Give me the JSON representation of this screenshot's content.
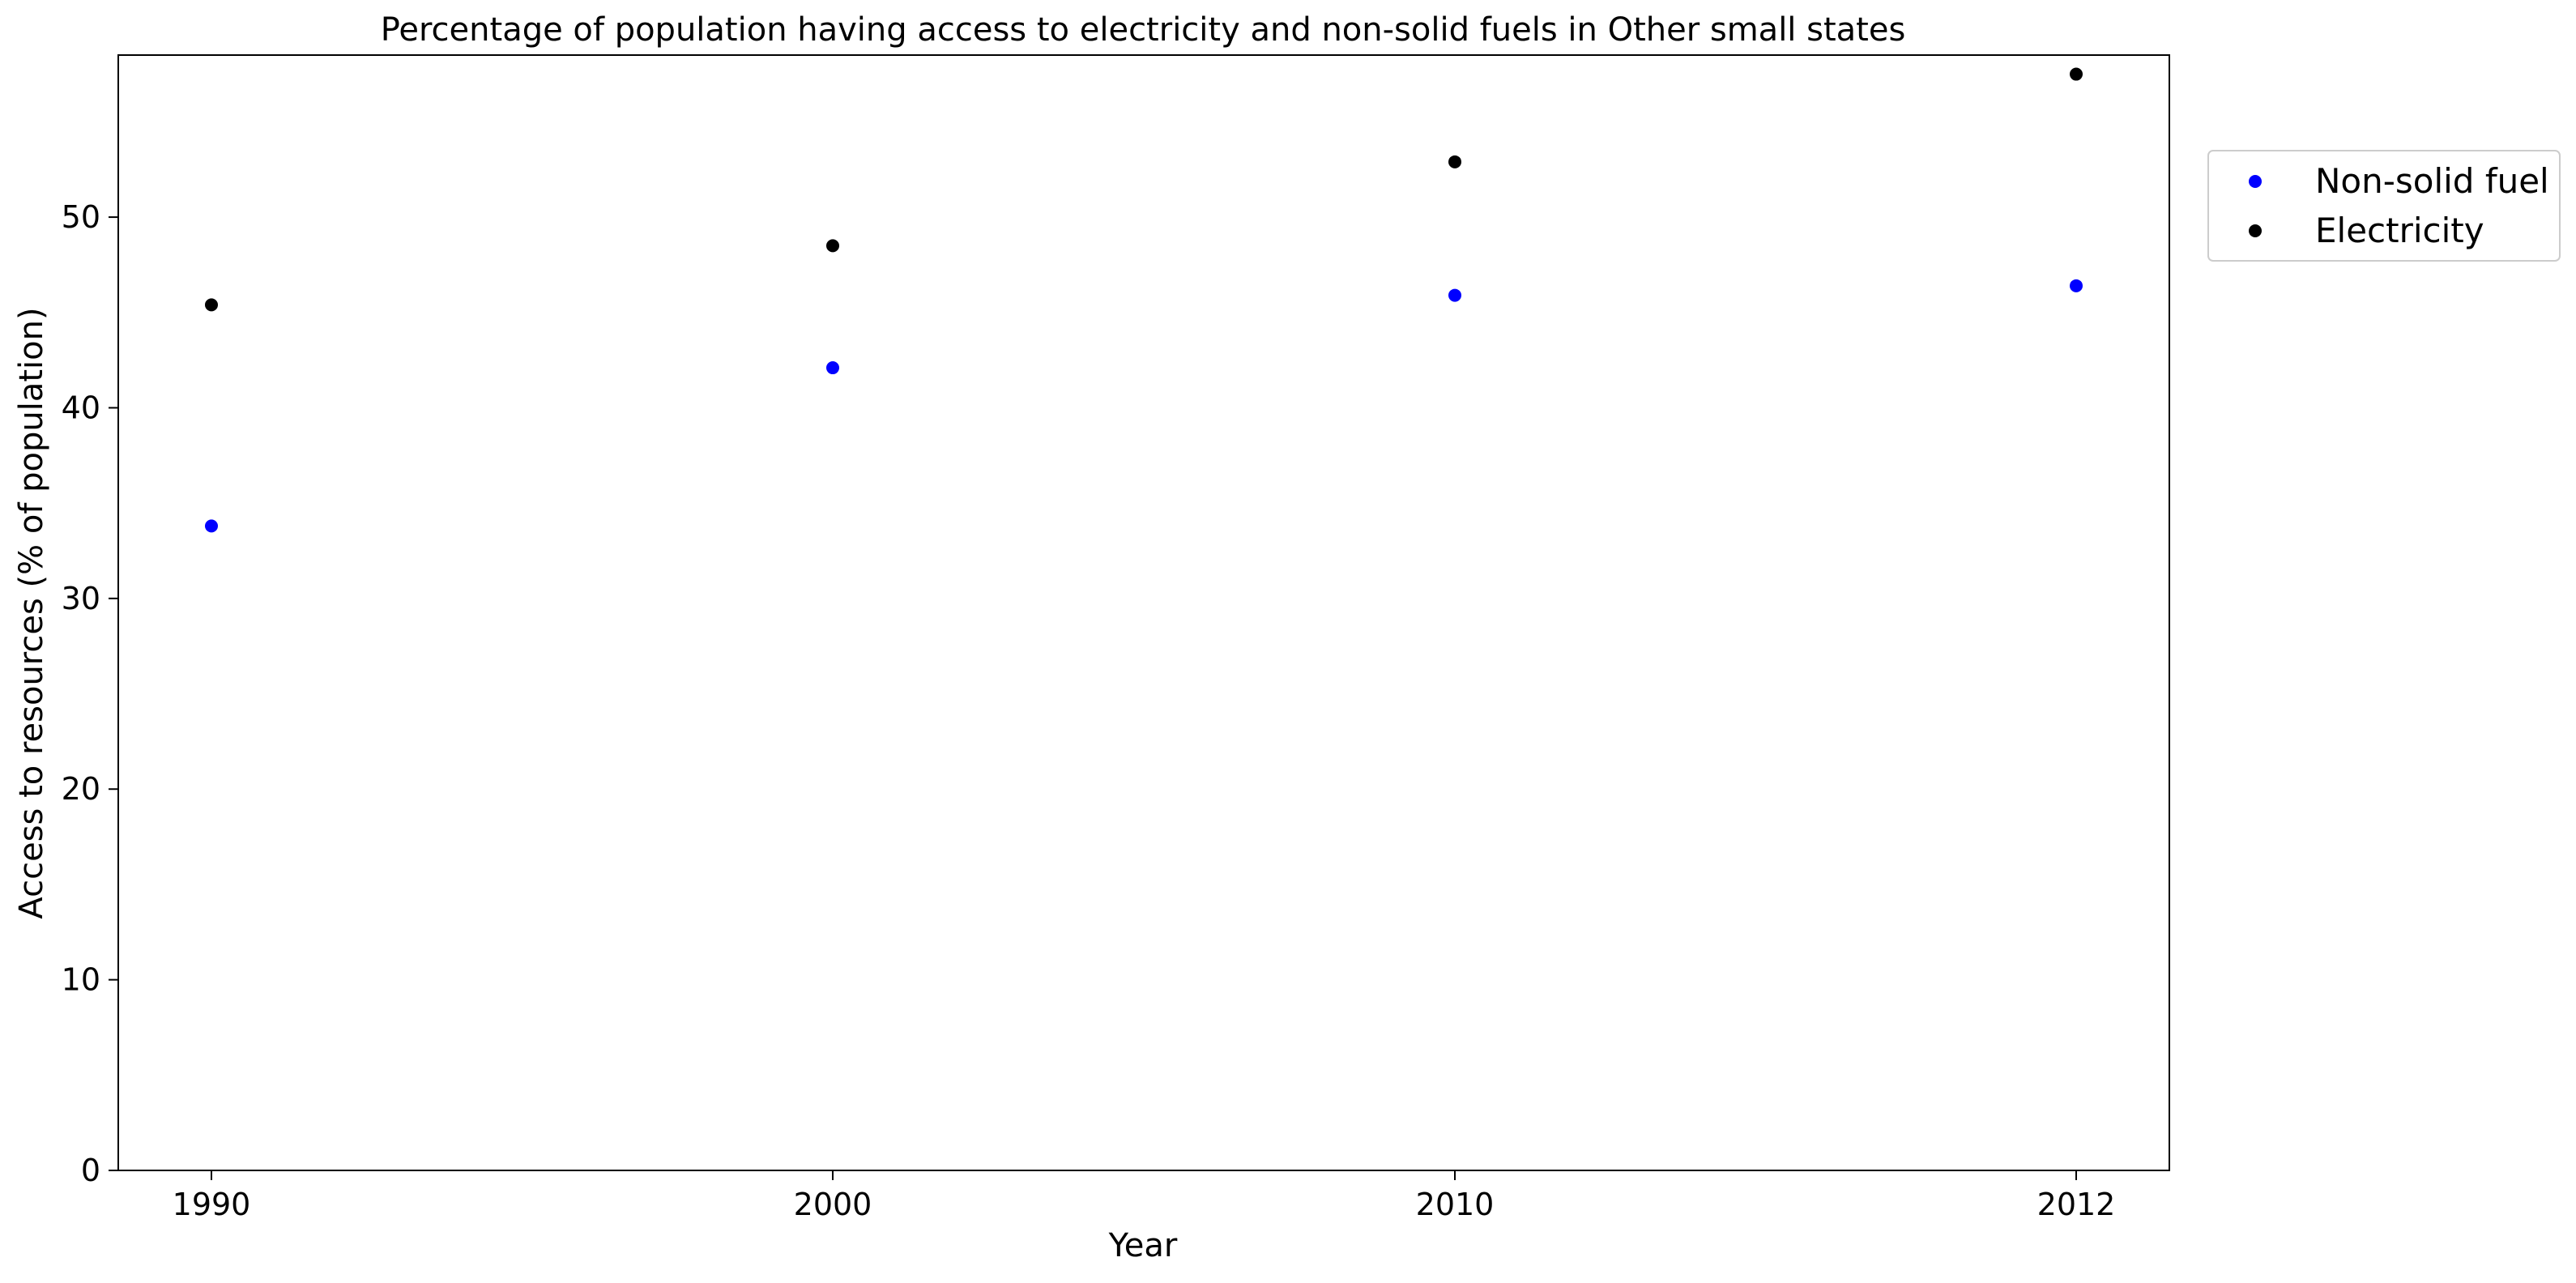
{
  "chart_data": {
    "type": "scatter",
    "title": "Percentage of population having access to electricity and non-solid fuels in Other small states",
    "xlabel": "Year",
    "ylabel": "Access to resources (% of population)",
    "categories": [
      "1990",
      "2000",
      "2010",
      "2012"
    ],
    "x_tick_labels": [
      "1990",
      "2000",
      "2010",
      "2012"
    ],
    "y_ticks": [
      0,
      10,
      20,
      30,
      40,
      50
    ],
    "ylim": [
      0,
      58.5
    ],
    "grid": false,
    "legend_position": "outside-top-right",
    "series": [
      {
        "name": "Non-solid fuel",
        "color": "#0000ff",
        "values": [
          33.8,
          42.1,
          45.9,
          46.4
        ]
      },
      {
        "name": "Electricity",
        "color": "#000000",
        "values": [
          45.4,
          48.5,
          52.9,
          57.5
        ]
      }
    ]
  }
}
